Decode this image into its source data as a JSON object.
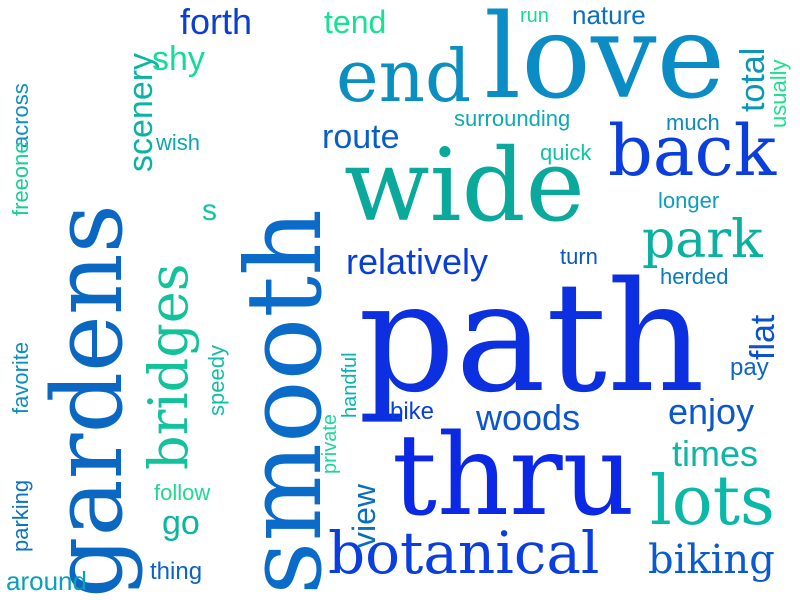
{
  "words": [
    {
      "text": "path",
      "color": "#0c2fe0"
    },
    {
      "text": "smooth",
      "color": "#0a6bc8"
    },
    {
      "text": "gardens",
      "color": "#0b68c2"
    },
    {
      "text": "love",
      "color": "#0b8cc4"
    },
    {
      "text": "wide",
      "color": "#0aa99b"
    },
    {
      "text": "thru",
      "color": "#0b28e6"
    },
    {
      "text": "end",
      "color": "#0b8fc0"
    },
    {
      "text": "back",
      "color": "#0b3fdd"
    },
    {
      "text": "bridges",
      "color": "#12c29a"
    },
    {
      "text": "botanical",
      "color": "#0b3ee0"
    },
    {
      "text": "lots",
      "color": "#0bb8a8"
    },
    {
      "text": "park",
      "color": "#0ab0a0"
    },
    {
      "text": "relatively",
      "color": "#0a3fd6"
    },
    {
      "text": "woods",
      "color": "#0b55cf"
    },
    {
      "text": "enjoy",
      "color": "#0b58c8"
    },
    {
      "text": "times",
      "color": "#0fb6a2"
    },
    {
      "text": "biking",
      "color": "#0b5bcf"
    },
    {
      "text": "forth",
      "color": "#0b3fd0"
    },
    {
      "text": "route",
      "color": "#0b5fc2"
    },
    {
      "text": "tend",
      "color": "#16e294"
    },
    {
      "text": "nature",
      "color": "#0a6fc0"
    },
    {
      "text": "run",
      "color": "#14dd8c"
    },
    {
      "text": "total",
      "color": "#0b98b6"
    },
    {
      "text": "usually",
      "color": "#1fe18c"
    },
    {
      "text": "surrounding",
      "color": "#0ea9b3"
    },
    {
      "text": "much",
      "color": "#0a8bbb"
    },
    {
      "text": "quick",
      "color": "#10c4a4"
    },
    {
      "text": "longer",
      "color": "#0c9ec0"
    },
    {
      "text": "turn",
      "color": "#0a58c2"
    },
    {
      "text": "herded",
      "color": "#0a7bbd"
    },
    {
      "text": "flat",
      "color": "#0b4fd4"
    },
    {
      "text": "pay",
      "color": "#0b66c8"
    },
    {
      "text": "scenery",
      "color": "#0bb3a3"
    },
    {
      "text": "shy",
      "color": "#16db97"
    },
    {
      "text": "wish",
      "color": "#0ba7ad"
    },
    {
      "text": "s",
      "color": "#0ec6a0"
    },
    {
      "text": "view",
      "color": "#0b6fbf"
    },
    {
      "text": "private",
      "color": "#1bd899"
    },
    {
      "text": "handful",
      "color": "#0ab3b0"
    },
    {
      "text": "bike",
      "color": "#0b3fd9"
    },
    {
      "text": "speedy",
      "color": "#12bda7"
    },
    {
      "text": "follow",
      "color": "#20d890"
    },
    {
      "text": "go",
      "color": "#0bb5a0"
    },
    {
      "text": "thing",
      "color": "#0b62c8"
    },
    {
      "text": "across",
      "color": "#0b8fc1"
    },
    {
      "text": "freeone",
      "color": "#17cf92"
    },
    {
      "text": "favorite",
      "color": "#0b8fc0"
    },
    {
      "text": "parking",
      "color": "#0b74c0"
    },
    {
      "text": "around",
      "color": "#0c9fb7"
    }
  ]
}
